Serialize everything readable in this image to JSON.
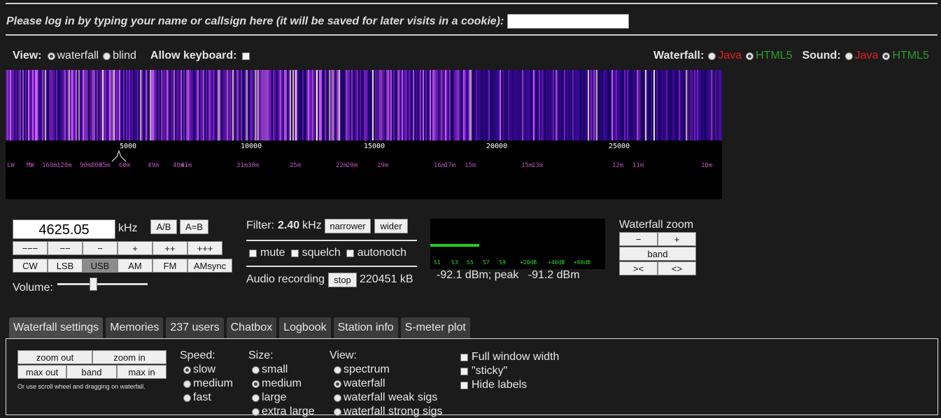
{
  "login": {
    "prompt": "Please log in by typing your name or callsign here (it will be saved for later visits in a cookie):",
    "value": ""
  },
  "view": {
    "label": "View:",
    "options": [
      "waterfall",
      "blind"
    ],
    "selected": "waterfall"
  },
  "keyboard": {
    "label": "Allow keyboard:",
    "checked": false
  },
  "waterfall_mode": {
    "label": "Waterfall:",
    "java": "Java",
    "html5": "HTML5",
    "selected": "HTML5"
  },
  "sound_mode": {
    "label": "Sound:",
    "java": "Java",
    "html5": "HTML5",
    "selected": "HTML5"
  },
  "scale": {
    "ticks": [
      "5000",
      "10000",
      "15000",
      "20000",
      "25000"
    ],
    "bands": [
      "LW",
      "MW",
      "160m",
      "120m",
      "90m",
      "80m",
      "75m",
      "60m",
      "49m",
      "40m",
      "41m",
      "31m",
      "30m",
      "25m",
      "22m",
      "20m",
      "19m",
      "16m",
      "17m",
      "15m",
      "15m",
      "13m",
      "12m",
      "11m",
      "10m"
    ]
  },
  "tuning": {
    "frequency": "4625.05",
    "unit": "kHz",
    "ab": "A/B",
    "aeqb": "A=B",
    "steps": [
      "−−−",
      "−−",
      "−",
      "+",
      "++",
      "+++"
    ],
    "modes": [
      "CW",
      "LSB",
      "USB",
      "AM",
      "FM",
      "AMsync"
    ],
    "selected_mode": "USB",
    "volume_label": "Volume:",
    "volume_level": 0.4
  },
  "filter": {
    "label": "Filter:",
    "value": "2.40",
    "unit": "kHz",
    "narrower": "narrower",
    "wider": "wider"
  },
  "toggles": [
    {
      "label": "mute",
      "checked": false
    },
    {
      "label": "squelch",
      "checked": false
    },
    {
      "label": "autonotch",
      "checked": false
    }
  ],
  "recording": {
    "label": "Audio recording",
    "stop": "stop",
    "size": "220451 kB"
  },
  "smeter": {
    "scale": [
      "S1",
      "S3",
      "S5",
      "S7",
      "S9",
      "+20dB",
      "+40dB",
      "+60dB"
    ],
    "readout": "-92.1 dBm; peak   -91.2 dBm",
    "bar_fraction": 0.28,
    "bar_color": "#22cc22"
  },
  "zoom": {
    "title": "Waterfall zoom",
    "minus": "−",
    "plus": "+",
    "band": "band",
    "left": "><",
    "right": "<>"
  },
  "tabs": [
    "Waterfall settings",
    "Memories",
    "237 users",
    "Chatbox",
    "Logbook",
    "Station info",
    "S-meter plot"
  ],
  "settings": {
    "zoom_out": "zoom out",
    "zoom_in": "zoom in",
    "max_out": "max out",
    "band": "band",
    "max_in": "max in",
    "hint": "Or use scroll wheel and dragging on waterfall.",
    "speed": {
      "label": "Speed:",
      "options": [
        "slow",
        "medium",
        "fast"
      ],
      "selected": "slow"
    },
    "size": {
      "label": "Size:",
      "options": [
        "small",
        "medium",
        "large",
        "extra large"
      ],
      "selected": "medium"
    },
    "view": {
      "label": "View:",
      "options": [
        "spectrum",
        "waterfall",
        "waterfall weak sigs",
        "waterfall strong sigs"
      ],
      "selected": "waterfall"
    },
    "checks": [
      {
        "label": "Full window width",
        "checked": false
      },
      {
        "label": "\"sticky\"",
        "checked": false
      },
      {
        "label": "Hide labels",
        "checked": false
      }
    ]
  }
}
